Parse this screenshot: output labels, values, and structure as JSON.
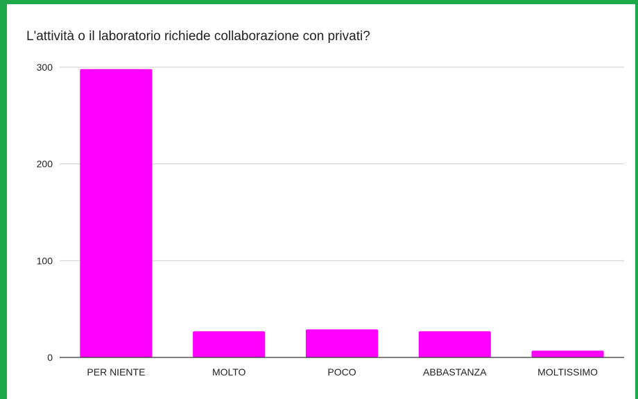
{
  "chart_data": {
    "type": "bar",
    "title": "L'attività o il laboratorio richiede collaborazione con privati?",
    "categories": [
      "PER NIENTE",
      "MOLTO",
      "POCO",
      "ABBASTANZA",
      "MOLTISSIMO"
    ],
    "values": [
      298,
      27,
      29,
      27,
      7
    ],
    "ylim": [
      0,
      300
    ],
    "yticks": [
      0,
      100,
      200,
      300
    ],
    "grid": true,
    "xlabel": "",
    "ylabel": "",
    "bar_color": "#ff00ff"
  },
  "colors": {
    "frame": "#1fa84a",
    "background_outside": "#7ac96b",
    "gridline": "#cccccc",
    "axis": "#333333"
  }
}
